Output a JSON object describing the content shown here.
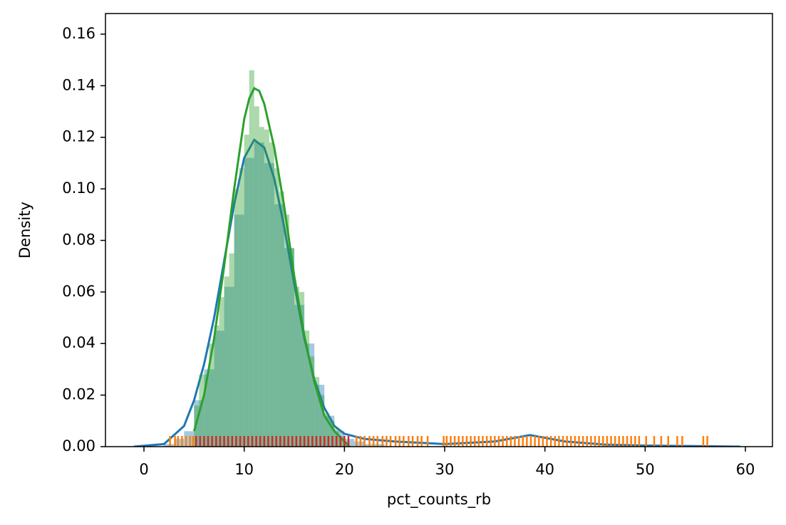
{
  "chart_data": {
    "type": "histogram",
    "xlabel": "pct_counts_rb",
    "ylabel": "Density",
    "xlim": [
      -3.84,
      62.7
    ],
    "ylim": [
      0,
      0.168
    ],
    "xticks": [
      0,
      10,
      20,
      30,
      40,
      50,
      60
    ],
    "yticks": [
      {
        "value": 0,
        "label": "0.00"
      },
      {
        "value": 0.02,
        "label": "0.02"
      },
      {
        "value": 0.04,
        "label": "0.04"
      },
      {
        "value": 0.06,
        "label": "0.06"
      },
      {
        "value": 0.08,
        "label": "0.08"
      },
      {
        "value": 0.1,
        "label": "0.10"
      },
      {
        "value": 0.12,
        "label": "0.12"
      },
      {
        "value": 0.14,
        "label": "0.14"
      },
      {
        "value": 0.16,
        "label": "0.16"
      }
    ],
    "series": [
      {
        "type": "histogram",
        "color": "#1f77b4",
        "opacity": 0.4,
        "bins": [
          2,
          3,
          4,
          5,
          6,
          7,
          8,
          9,
          10,
          11,
          12,
          13,
          14,
          15,
          16,
          17,
          18,
          19,
          20,
          21,
          22,
          23,
          24
        ],
        "values": [
          0.001,
          0.003,
          0.006,
          0.018,
          0.03,
          0.045,
          0.062,
          0.09,
          0.112,
          0.118,
          0.11,
          0.094,
          0.077,
          0.055,
          0.04,
          0.024,
          0.012,
          0.006,
          0.003,
          0.002,
          0.001,
          0.001
        ]
      },
      {
        "type": "line",
        "color": "#1f77b4",
        "x": [
          -1,
          2,
          4,
          5,
          6,
          7,
          8,
          9,
          10,
          11,
          12,
          13,
          14,
          15,
          16,
          17,
          18,
          19,
          20,
          22,
          25,
          30,
          35,
          38.5,
          42,
          46,
          50,
          55,
          59.5
        ],
        "values": [
          0,
          0.001,
          0.008,
          0.018,
          0.032,
          0.05,
          0.072,
          0.094,
          0.112,
          0.119,
          0.116,
          0.104,
          0.085,
          0.063,
          0.042,
          0.026,
          0.015,
          0.008,
          0.005,
          0.003,
          0.002,
          0.001,
          0.002,
          0.0045,
          0.002,
          0.0008,
          0.0004,
          0.0002,
          0
        ]
      },
      {
        "type": "rug",
        "color": "#ff7f0e",
        "x": [
          2.6,
          3.1,
          3.4,
          3.8,
          4.2,
          4.6,
          4.9,
          21.2,
          21.6,
          22.0,
          22.5,
          22.9,
          23.3,
          23.8,
          24.2,
          24.6,
          25.1,
          25.5,
          25.9,
          26.4,
          26.8,
          27.3,
          27.7,
          28.3,
          29.9,
          30.2,
          30.6,
          31.0,
          31.4,
          31.8,
          32.2,
          32.6,
          33.0,
          33.4,
          33.8,
          34.2,
          34.6,
          35.0,
          35.4,
          35.8,
          36.2,
          36.6,
          37.0,
          37.4,
          37.8,
          38.2,
          38.6,
          39.0,
          39.4,
          39.8,
          40.2,
          40.6,
          41.0,
          41.4,
          41.8,
          42.2,
          42.6,
          43.0,
          43.4,
          43.8,
          44.2,
          44.6,
          45.0,
          45.4,
          45.8,
          46.2,
          46.6,
          47.0,
          47.4,
          47.8,
          48.2,
          48.6,
          49.0,
          49.4,
          50.1,
          50.9,
          51.6,
          52.3,
          53.2,
          53.7,
          55.8,
          56.2
        ]
      },
      {
        "type": "histogram",
        "color": "#2ca02c",
        "opacity": 0.4,
        "bins": [
          5,
          5.5,
          6,
          6.5,
          7,
          7.5,
          8,
          8.5,
          9,
          9.5,
          10,
          10.5,
          11,
          11.5,
          12,
          12.5,
          13,
          13.5,
          14,
          14.5,
          15,
          15.5,
          16,
          16.5,
          17,
          17.5,
          18,
          18.5,
          19,
          19.5,
          20,
          20.5
        ],
        "values": [
          0.016,
          0.028,
          0.028,
          0.04,
          0.047,
          0.058,
          0.066,
          0.075,
          0.1,
          0.108,
          0.121,
          0.146,
          0.132,
          0.124,
          0.123,
          0.118,
          0.108,
          0.099,
          0.09,
          0.077,
          0.062,
          0.06,
          0.045,
          0.035,
          0.027,
          0.02,
          0.013,
          0.01,
          0.007,
          0.004,
          0.002
        ]
      },
      {
        "type": "line",
        "color": "#2ca02c",
        "x": [
          5,
          6,
          7,
          8,
          9,
          10,
          10.5,
          11,
          11.5,
          12,
          13,
          14,
          15,
          16,
          17,
          18,
          19,
          20,
          20.5
        ],
        "values": [
          0.006,
          0.02,
          0.042,
          0.07,
          0.1,
          0.127,
          0.135,
          0.139,
          0.138,
          0.133,
          0.116,
          0.093,
          0.066,
          0.043,
          0.025,
          0.012,
          0.006,
          0.002,
          0
        ]
      },
      {
        "type": "rug",
        "color": "#d62728",
        "x": [
          5.2,
          5.6,
          6.0,
          6.4,
          6.8,
          7.2,
          7.6,
          8.0,
          8.4,
          8.8,
          9.2,
          9.6,
          10.0,
          10.4,
          10.8,
          11.2,
          11.6,
          12.0,
          12.4,
          12.8,
          13.2,
          13.6,
          14.0,
          14.4,
          14.8,
          15.2,
          15.6,
          16.0,
          16.4,
          16.8,
          17.2,
          17.6,
          18.0,
          18.4,
          18.8,
          19.2,
          19.6,
          20.0,
          20.4
        ]
      }
    ]
  }
}
